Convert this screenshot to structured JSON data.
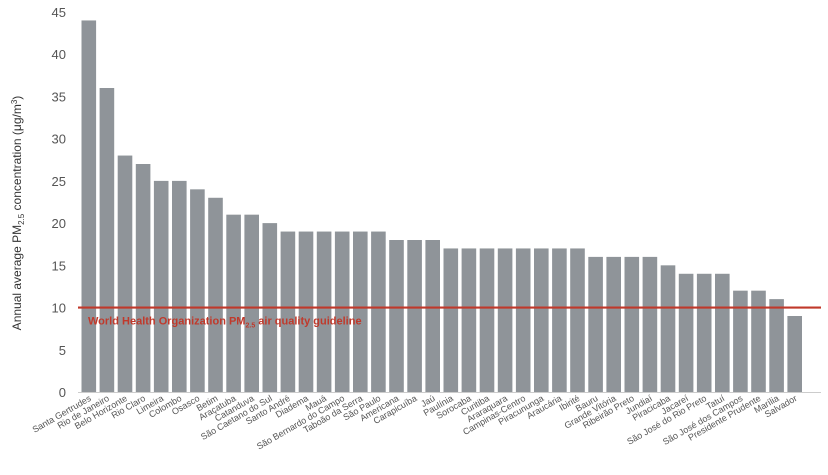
{
  "colors": {
    "bar": "#8f9499",
    "guideline": "#c0392b",
    "text": "#555555"
  },
  "chart_data": {
    "type": "bar",
    "ylabel_parts": [
      "Annual average PM",
      "2.5",
      " concentration (μg/m",
      "3",
      ")"
    ],
    "ylim": [
      0,
      45
    ],
    "yticks": [
      0,
      5,
      10,
      15,
      20,
      25,
      30,
      35,
      40,
      45
    ],
    "grid": false,
    "categories": [
      "Santa Gertrudes",
      "Rio de Janeiro",
      "Belo Horizonte",
      "Rio Claro",
      "Limeira",
      "Colombo",
      "Osasco",
      "Betim",
      "Araçatuba",
      "Catanduva",
      "São Caetano do Sul",
      "Santo André",
      "Diadema",
      "Mauá",
      "São Bernardo do Campo",
      "Taboão da Serra",
      "São Paulo",
      "Americana",
      "Carapicuíba",
      "Jaú",
      "Paulínia",
      "Sorocaba",
      "Curitiba",
      "Araraquara",
      "Campinas-Centro",
      "Piracununga",
      "Araucária",
      "Ibirité",
      "Bauru",
      "Grande Vitória",
      "Ribeirão Preto",
      "Jundiaí",
      "Piracicaba",
      "Jacareí",
      "São José do Rio Preto",
      "Tatuí",
      "São José dos Campos",
      "Presidente Prudente",
      "Marília",
      "Salvador"
    ],
    "values": [
      44,
      36,
      28,
      27,
      25,
      25,
      24,
      23,
      21,
      21,
      20,
      19,
      19,
      19,
      19,
      19,
      19,
      18,
      18,
      18,
      17,
      17,
      17,
      17,
      17,
      17,
      17,
      17,
      16,
      16,
      16,
      16,
      15,
      14,
      14,
      14,
      12,
      12,
      11,
      9
    ],
    "reference_line": {
      "value": 10,
      "label_parts": [
        "World Health Organization PM",
        "2.5",
        " air quality guideline"
      ]
    }
  }
}
